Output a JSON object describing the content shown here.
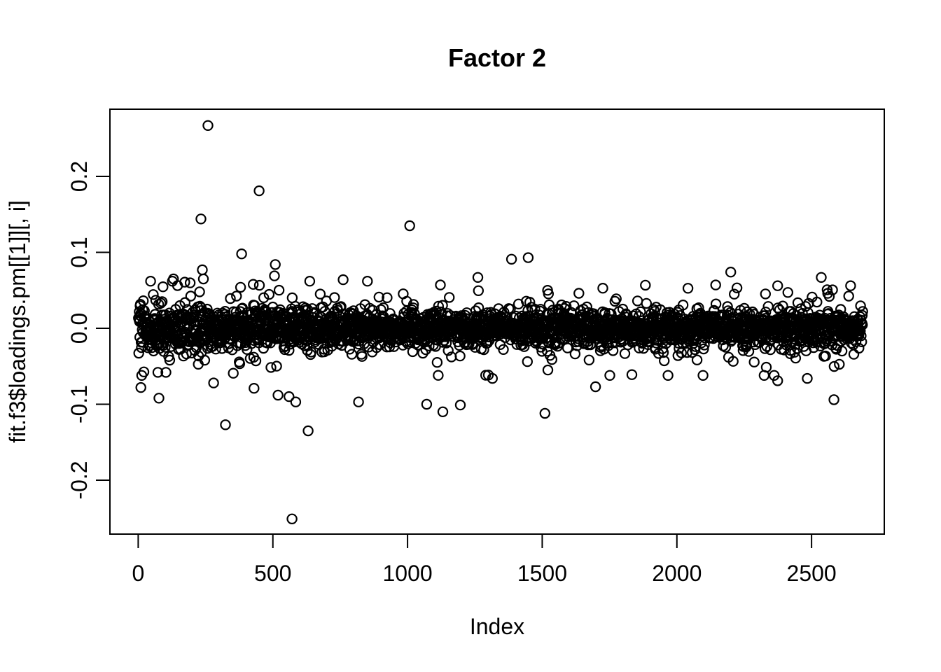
{
  "background": "#ffffff",
  "chart_data": {
    "type": "scatter",
    "title": "Factor 2",
    "xlabel": "Index",
    "ylabel": "fit.f3$loadings.pm[[1]][, i]",
    "marker": "open-circle",
    "point_color": "#000000",
    "grid": false,
    "legend": null,
    "n_points": 2690,
    "x_index_range": [
      1,
      2690
    ],
    "xlim": [
      -105,
      2770
    ],
    "ylim": [
      -0.271,
      0.2885
    ],
    "x_ticks": [
      {
        "v": 0,
        "label": "0"
      },
      {
        "v": 500,
        "label": "500"
      },
      {
        "v": 1000,
        "label": "1000"
      },
      {
        "v": 1500,
        "label": "1500"
      },
      {
        "v": 2000,
        "label": "2000"
      },
      {
        "v": 2500,
        "label": "2500"
      }
    ],
    "y_ticks": [
      {
        "v": 0.2,
        "label": "0.2"
      },
      {
        "v": 0.1,
        "label": "0.1"
      },
      {
        "v": 0.0,
        "label": "0.0"
      },
      {
        "v": -0.1,
        "label": "-0.1"
      },
      {
        "v": -0.2,
        "label": "-0.2"
      }
    ],
    "band": {
      "description": "dense horizontal band of open circles centered on 0, solid black for |v|<~0.025, wider spread for small indices",
      "core_sd": 0.0115,
      "mid_sd": 0.0205,
      "mid_frac": 0.2,
      "wide_sd": 0.03,
      "wide_frac": 0.05,
      "left_boost": 0.55,
      "left_decay": 380,
      "clamp": 0.062,
      "seed": 42
    },
    "outliers": [
      [
        259,
        0.267
      ],
      [
        449,
        0.181
      ],
      [
        233,
        0.144
      ],
      [
        1008,
        0.135
      ],
      [
        384,
        0.098
      ],
      [
        1448,
        0.093
      ],
      [
        1386,
        0.091
      ],
      [
        509,
        0.084
      ],
      [
        238,
        0.077
      ],
      [
        242,
        0.065
      ],
      [
        506,
        0.069
      ],
      [
        131,
        0.065
      ],
      [
        1261,
        0.067
      ],
      [
        761,
        0.064
      ],
      [
        2200,
        0.074
      ],
      [
        2536,
        0.067
      ],
      [
        2374,
        0.056
      ],
      [
        2645,
        0.056
      ],
      [
        228,
        0.048
      ],
      [
        380,
        0.054
      ],
      [
        2560,
        0.046
      ],
      [
        571,
        -0.251
      ],
      [
        631,
        -0.135
      ],
      [
        324,
        -0.127
      ],
      [
        1510,
        -0.112
      ],
      [
        1131,
        -0.11
      ],
      [
        1196,
        -0.101
      ],
      [
        1071,
        -0.1
      ],
      [
        818,
        -0.097
      ],
      [
        2583,
        -0.094
      ],
      [
        77,
        -0.092
      ],
      [
        560,
        -0.09
      ],
      [
        519,
        -0.088
      ],
      [
        585,
        -0.097
      ],
      [
        10,
        -0.078
      ],
      [
        1698,
        -0.077
      ],
      [
        280,
        -0.072
      ],
      [
        2374,
        -0.069
      ],
      [
        1315,
        -0.066
      ],
      [
        2484,
        -0.066
      ],
      [
        103,
        -0.058
      ],
      [
        1833,
        -0.061
      ],
      [
        430,
        -0.079
      ]
    ]
  }
}
